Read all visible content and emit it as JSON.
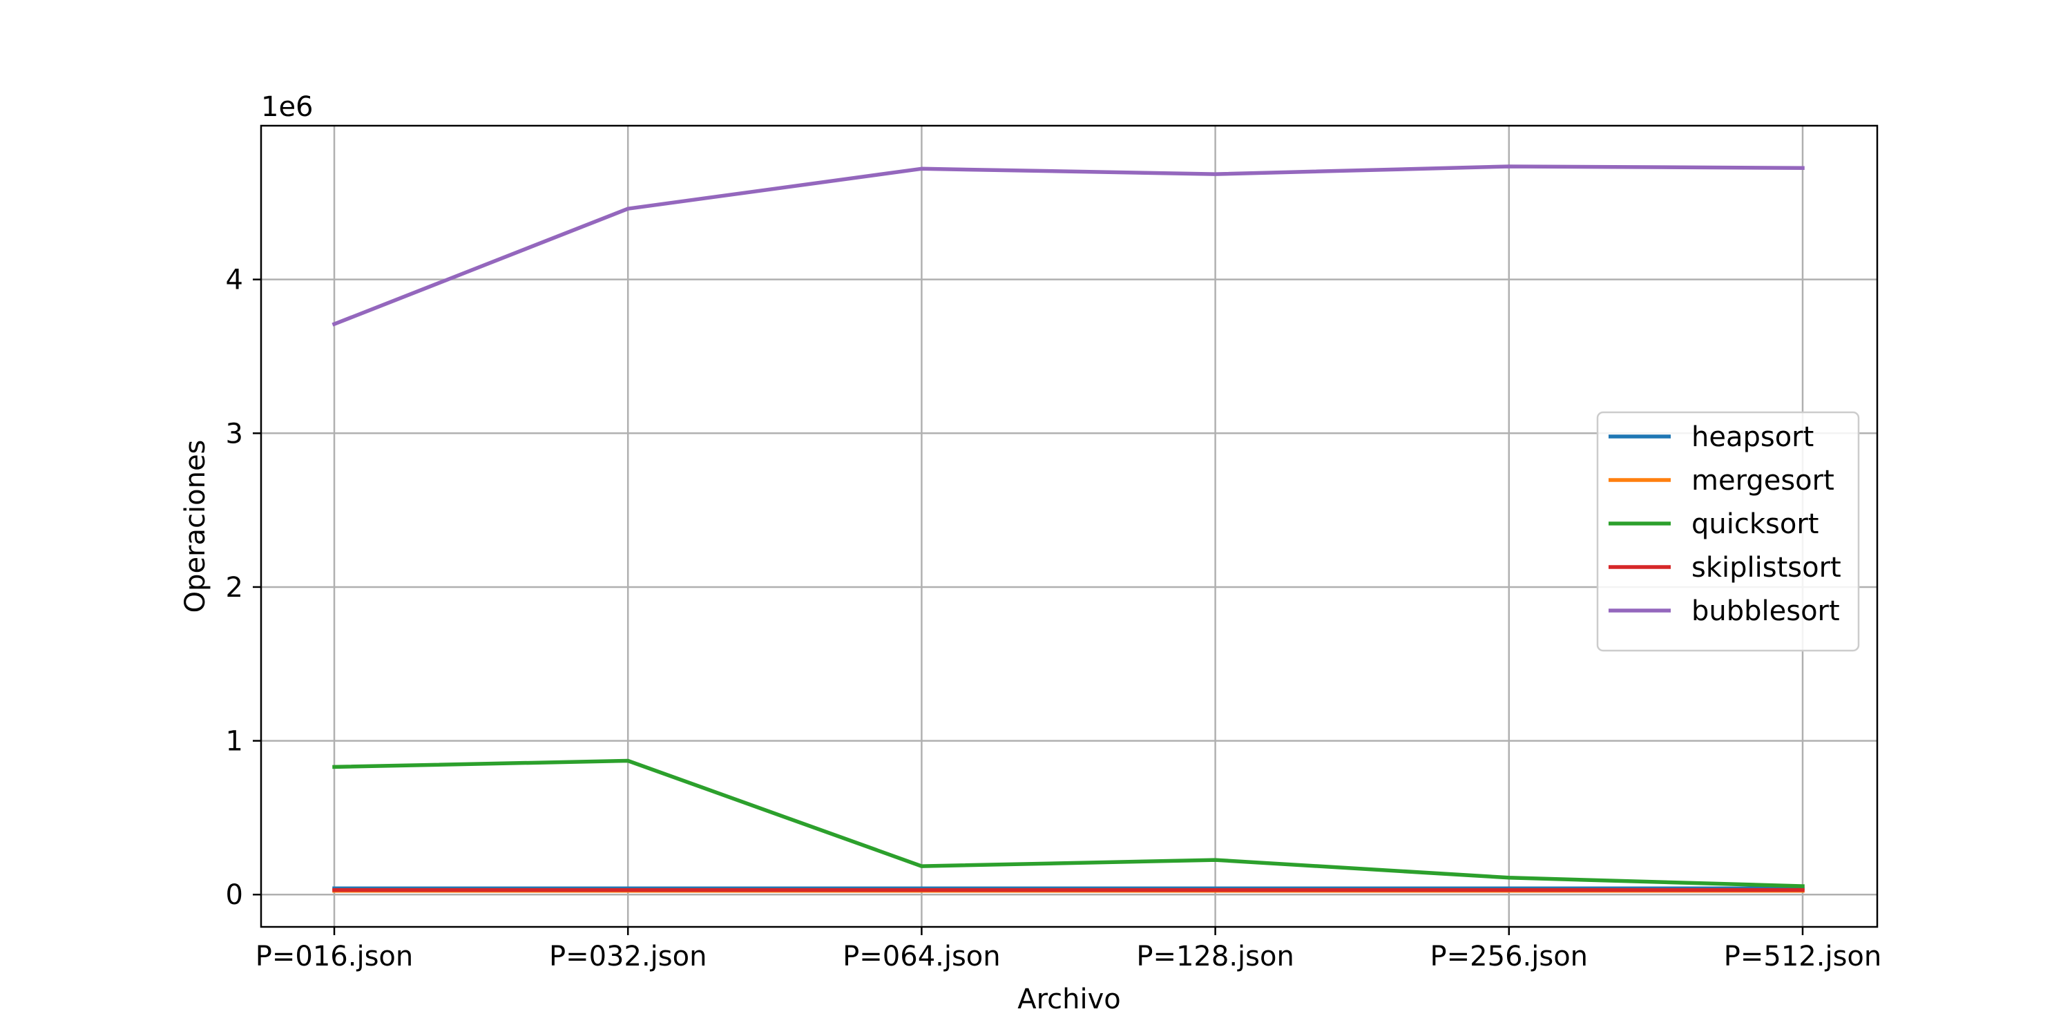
{
  "chart_data": {
    "type": "line",
    "categories": [
      "P=016.json",
      "P=032.json",
      "P=064.json",
      "P=128.json",
      "P=256.json",
      "P=512.json"
    ],
    "xlabel": "Archivo",
    "ylabel": "Operaciones",
    "y_offset_text": "1e6",
    "y_scale_factor": 1000000,
    "ylim": [
      -210000,
      5000000
    ],
    "yticks": [
      0,
      1000000,
      2000000,
      3000000,
      4000000
    ],
    "ytick_labels": [
      "0",
      "1",
      "2",
      "3",
      "4"
    ],
    "grid": true,
    "legend_position": "center-right",
    "series": [
      {
        "name": "heapsort",
        "color": "#1f77b4",
        "values": [
          40000,
          40000,
          40000,
          40000,
          40000,
          40000
        ]
      },
      {
        "name": "mergesort",
        "color": "#ff7f0e",
        "values": [
          25000,
          25000,
          25000,
          25000,
          25000,
          25000
        ]
      },
      {
        "name": "quicksort",
        "color": "#2ca02c",
        "values": [
          830000,
          870000,
          185000,
          225000,
          110000,
          55000
        ]
      },
      {
        "name": "skiplistsort",
        "color": "#d62728",
        "values": [
          30000,
          30000,
          30000,
          30000,
          30000,
          30000
        ]
      },
      {
        "name": "bubblesort",
        "color": "#9467bd",
        "values": [
          3710000,
          4460000,
          4720000,
          4685000,
          4735000,
          4725000
        ]
      }
    ]
  }
}
